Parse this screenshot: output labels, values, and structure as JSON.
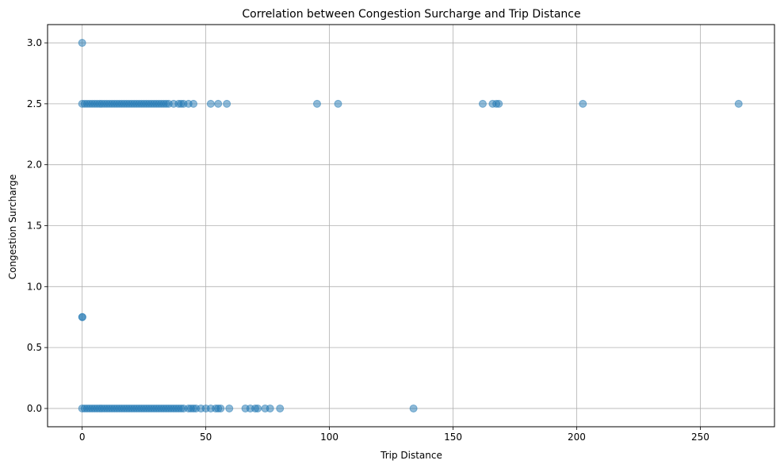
{
  "chart_data": {
    "type": "scatter",
    "title": "Correlation between Congestion Surcharge and Trip Distance",
    "xlabel": "Trip Distance",
    "ylabel": "Congestion Surcharge",
    "xlim": [
      -14,
      280
    ],
    "ylim": [
      -0.15,
      3.15
    ],
    "xticks": [
      0,
      50,
      100,
      150,
      200,
      250
    ],
    "xtick_labels": [
      "0",
      "50",
      "100",
      "150",
      "200",
      "250"
    ],
    "yticks": [
      0.0,
      0.5,
      1.0,
      1.5,
      2.0,
      2.5,
      3.0
    ],
    "ytick_labels": [
      "0.0",
      "0.5",
      "1.0",
      "1.5",
      "2.0",
      "2.5",
      "3.0"
    ],
    "grid": true,
    "marker_color": "#1f77b4",
    "marker_alpha": 0.5,
    "points": [
      [
        0,
        3.0
      ],
      [
        0,
        0.75
      ],
      [
        0.1,
        0.75
      ],
      [
        0,
        2.5
      ],
      [
        1,
        2.5
      ],
      [
        2,
        2.5
      ],
      [
        3,
        2.5
      ],
      [
        4,
        2.5
      ],
      [
        5,
        2.5
      ],
      [
        6,
        2.5
      ],
      [
        7,
        2.5
      ],
      [
        8,
        2.5
      ],
      [
        9,
        2.5
      ],
      [
        10,
        2.5
      ],
      [
        11,
        2.5
      ],
      [
        12,
        2.5
      ],
      [
        13,
        2.5
      ],
      [
        14,
        2.5
      ],
      [
        15,
        2.5
      ],
      [
        16,
        2.5
      ],
      [
        17,
        2.5
      ],
      [
        18,
        2.5
      ],
      [
        19,
        2.5
      ],
      [
        20,
        2.5
      ],
      [
        21,
        2.5
      ],
      [
        22,
        2.5
      ],
      [
        23,
        2.5
      ],
      [
        24,
        2.5
      ],
      [
        25,
        2.5
      ],
      [
        26,
        2.5
      ],
      [
        27,
        2.5
      ],
      [
        28,
        2.5
      ],
      [
        29,
        2.5
      ],
      [
        30,
        2.5
      ],
      [
        31,
        2.5
      ],
      [
        32,
        2.5
      ],
      [
        33,
        2.5
      ],
      [
        34,
        2.5
      ],
      [
        35,
        2.5
      ],
      [
        37,
        2.5
      ],
      [
        39,
        2.5
      ],
      [
        40,
        2.5
      ],
      [
        41,
        2.5
      ],
      [
        43,
        2.5
      ],
      [
        45,
        2.5
      ],
      [
        52,
        2.5
      ],
      [
        55,
        2.5
      ],
      [
        58.5,
        2.5
      ],
      [
        95,
        2.5
      ],
      [
        103.5,
        2.5
      ],
      [
        162,
        2.5
      ],
      [
        166,
        2.5
      ],
      [
        167.5,
        2.5
      ],
      [
        168.5,
        2.5
      ],
      [
        202.5,
        2.5
      ],
      [
        265.5,
        2.5
      ],
      [
        0,
        0
      ],
      [
        1,
        0
      ],
      [
        2,
        0
      ],
      [
        3,
        0
      ],
      [
        4,
        0
      ],
      [
        5,
        0
      ],
      [
        6,
        0
      ],
      [
        7,
        0
      ],
      [
        8,
        0
      ],
      [
        9,
        0
      ],
      [
        10,
        0
      ],
      [
        11,
        0
      ],
      [
        12,
        0
      ],
      [
        13,
        0
      ],
      [
        14,
        0
      ],
      [
        15,
        0
      ],
      [
        16,
        0
      ],
      [
        17,
        0
      ],
      [
        18,
        0
      ],
      [
        19,
        0
      ],
      [
        20,
        0
      ],
      [
        21,
        0
      ],
      [
        22,
        0
      ],
      [
        23,
        0
      ],
      [
        24,
        0
      ],
      [
        25,
        0
      ],
      [
        26,
        0
      ],
      [
        27,
        0
      ],
      [
        28,
        0
      ],
      [
        29,
        0
      ],
      [
        30,
        0
      ],
      [
        31,
        0
      ],
      [
        32,
        0
      ],
      [
        33,
        0
      ],
      [
        34,
        0
      ],
      [
        35,
        0
      ],
      [
        36,
        0
      ],
      [
        37,
        0
      ],
      [
        38,
        0
      ],
      [
        39,
        0
      ],
      [
        40,
        0
      ],
      [
        41,
        0
      ],
      [
        43,
        0
      ],
      [
        44,
        0
      ],
      [
        45,
        0
      ],
      [
        46,
        0
      ],
      [
        48,
        0
      ],
      [
        50,
        0
      ],
      [
        52,
        0
      ],
      [
        54,
        0
      ],
      [
        55,
        0
      ],
      [
        56,
        0
      ],
      [
        59.5,
        0
      ],
      [
        66,
        0
      ],
      [
        68,
        0
      ],
      [
        70,
        0
      ],
      [
        71,
        0
      ],
      [
        74,
        0
      ],
      [
        76,
        0
      ],
      [
        80,
        0
      ],
      [
        134,
        0
      ]
    ]
  }
}
